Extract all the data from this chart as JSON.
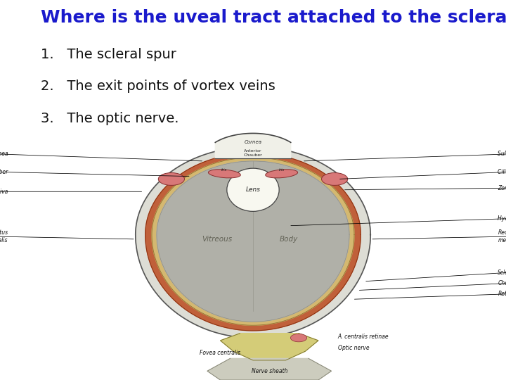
{
  "title": "Where is the uveal tract attached to the sclera?",
  "title_color": "#1a1acc",
  "title_fontsize": 18,
  "title_bold": true,
  "items": [
    "The scleral spur",
    "The exit points of vortex veins",
    "The optic nerve."
  ],
  "items_fontsize": 14,
  "items_color": "#111111",
  "background_color": "#ffffff",
  "label_fontsize": 5.5,
  "label_color": "#111111"
}
